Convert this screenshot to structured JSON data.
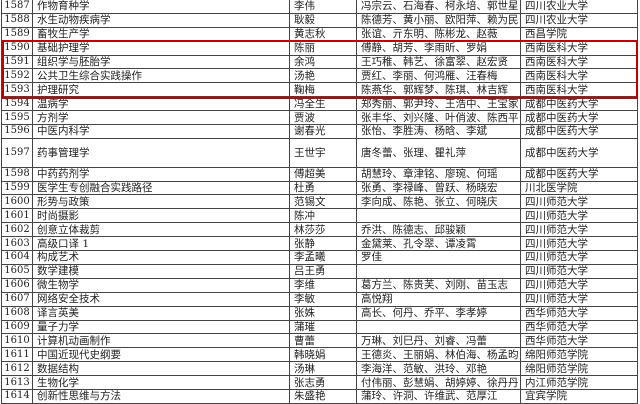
{
  "highlight_color": "#c00000",
  "rows": [
    {
      "no": "1587",
      "course": "作物育种学",
      "lead": "李伟",
      "team": "冯宗云、石海春、柯永培、郭世星",
      "school": "四川农业大学"
    },
    {
      "no": "1588",
      "course": "水生动物疾病学",
      "lead": "耿毅",
      "team": "陈德芳、黄小丽、欧阳萍、赖为民",
      "school": "四川农业大学"
    },
    {
      "no": "1589",
      "course": "畜牧生产学",
      "lead": "黄志秋",
      "team": "张谊、亓东明、陈彬龙、赵薇",
      "school": "西昌学院"
    },
    {
      "no": "1590",
      "course": "基础护理学",
      "lead": "陈丽",
      "team": "傅静、胡芳、李雨昕、罗娟",
      "school": "西南医科大学"
    },
    {
      "no": "1591",
      "course": "组织学与胚胎学",
      "lead": "余鸿",
      "team": "王巧稚、韩艺、徐富翠、赵宏贤",
      "school": "西南医科大学"
    },
    {
      "no": "1592",
      "course": "公共卫生综合实践操作",
      "lead": "汤艳",
      "team": "贾红、李丽、何鸿雁、汪春梅",
      "school": "西南医科大学"
    },
    {
      "no": "1593",
      "course": "护理研究",
      "lead": "鞠梅",
      "team": "陈燕华、郭辉梦、陈琪、林吉辉",
      "school": "西南医科大学"
    },
    {
      "no": "1594",
      "course": "温病学",
      "lead": "冯全生",
      "team": "郑秀丽、郭尹玲、王浩中、王宝家",
      "school": "成都中医药大学"
    },
    {
      "no": "1595",
      "course": "方剂学",
      "lead": "贾波",
      "team": "张丰华、刘兴隆、叶俏波、陈西平",
      "school": "成都中医药大学"
    },
    {
      "no": "1596",
      "course": "中医内科学",
      "lead": "谢春光",
      "team": "张怡、李胜涛、杨晗、李斌",
      "school": "成都中医药大学"
    },
    {
      "no": "1597",
      "course": "药事管理学",
      "lead": "王世宇",
      "team": "唐冬蕾、张理、瞿礼萍",
      "school": "成都中医药大学",
      "tall": true
    },
    {
      "no": "1598",
      "course": "中药药剂学",
      "lead": "傅超美",
      "team": "胡慧玲、章津铭、廖琬、何瑶",
      "school": "成都中医药大学"
    },
    {
      "no": "1599",
      "course": "医学生专创融合实践路径",
      "lead": "杜勇",
      "team": "张勇、李禄峰、曾跃、杨晓宏",
      "school": "川北医学院"
    },
    {
      "no": "1600",
      "course": "形势与政策",
      "lead": "范锡文",
      "team": "李向成、陈艳、张立、何晓庆",
      "school": "四川师范大学"
    },
    {
      "no": "1601",
      "course": "时尚摄影",
      "lead": "陈冲",
      "team": "",
      "school": "四川师范大学"
    },
    {
      "no": "1602",
      "course": "创意立体裁剪",
      "lead": "林莎莎",
      "team": "乔洪、陈德志、邱骏颖",
      "school": "四川师范大学"
    },
    {
      "no": "1603",
      "course": "高级口译 1",
      "lead": "张静",
      "team": "金黛莱、孔令翠、谭凌霄",
      "school": "四川师范大学"
    },
    {
      "no": "1604",
      "course": "构成艺术",
      "lead": "李孟曦",
      "team": "罗佳",
      "school": "四川师范大学"
    },
    {
      "no": "1605",
      "course": "数学建模",
      "lead": "吕王勇",
      "team": "",
      "school": "四川师范大学"
    },
    {
      "no": "1606",
      "course": "微生物学",
      "lead": "李维",
      "team": "葛方兰、陈贵芙、刘刚、苗玉志",
      "school": "四川师范大学"
    },
    {
      "no": "1607",
      "course": "网络安全技术",
      "lead": "李敏",
      "team": "高悦翔",
      "school": "四川师范大学"
    },
    {
      "no": "1608",
      "course": "译言英美",
      "lead": "张姝",
      "team": "高长、何丹、乔平、李孝婷",
      "school": "西华师范大学"
    },
    {
      "no": "1609",
      "course": "量子力学",
      "lead": "蒲璀",
      "team": "",
      "school": "西华师范大学"
    },
    {
      "no": "1610",
      "course": "计算机动画制作",
      "lead": "曹蕾",
      "team": "万琳、刘巳丹、刘睿、冯蕾",
      "school": "西华师范大学"
    },
    {
      "no": "1611",
      "course": "中国近现代史纲要",
      "lead": "韩晓娟",
      "team": "王德炎、王丽娟、林伯海、杨孟昀",
      "school": "绵阳师范学院"
    },
    {
      "no": "1612",
      "course": "数据结构",
      "lead": "汤琳",
      "team": "李海洋、范敏、洪玲、邓艳",
      "school": "绵阳师范学院"
    },
    {
      "no": "1613",
      "course": "生物化学",
      "lead": "张志勇",
      "team": "付伟丽、彭慧娟、胡婷婷、徐丹丹",
      "school": "内江师范学院"
    },
    {
      "no": "1614",
      "course": "创新性思维与方法",
      "lead": "朱盛艳",
      "team": "蒲玲、许洞、许维武、范厚江",
      "school": "宜宾学院"
    }
  ]
}
